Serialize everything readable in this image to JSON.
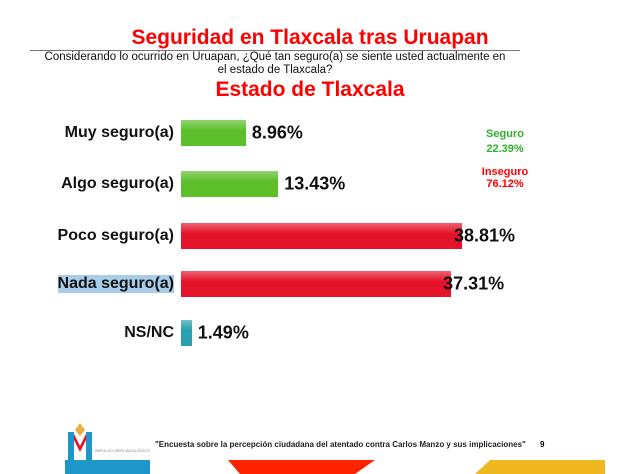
{
  "title": "Seguridad en Tlaxcala tras Uruapan",
  "question": "Considerando lo ocurrido en Uruapan, ¿Qué tan seguro(a) se siente usted actualmente en el estado de Tlaxcala?",
  "subtitle": "Estado de Tlaxcala",
  "summary": {
    "seguro_label": "Seguro",
    "seguro_value": "22.39%",
    "inseguro_label": "Inseguro",
    "inseguro_value": "76.12%"
  },
  "footer": {
    "text": "\"Encuesta sobre la percepción ciudadana del atentado contra Carlos Manzo y sus implicaciones\"",
    "page": "9",
    "logo_text": "IMPULSO MERCADOLÓGICO"
  },
  "colors": {
    "green": "#5cbf2a",
    "red": "#e5132a",
    "teal": "#2a9fb0"
  },
  "chart_data": {
    "type": "bar",
    "orientation": "horizontal",
    "title": "Estado de Tlaxcala",
    "categories": [
      "Muy seguro(a)",
      "Algo seguro(a)",
      "Poco seguro(a)",
      "Nada seguro(a)",
      "NS/NC"
    ],
    "values": [
      8.96,
      13.43,
      38.81,
      37.31,
      1.49
    ],
    "labels": [
      "8.96%",
      "13.43%",
      "38.81%",
      "37.31%",
      "1.49%"
    ],
    "colors": [
      "#5cbf2a",
      "#5cbf2a",
      "#e5132a",
      "#e5132a",
      "#2a9fb0"
    ],
    "xlim": [
      0,
      50
    ],
    "grid": false
  }
}
